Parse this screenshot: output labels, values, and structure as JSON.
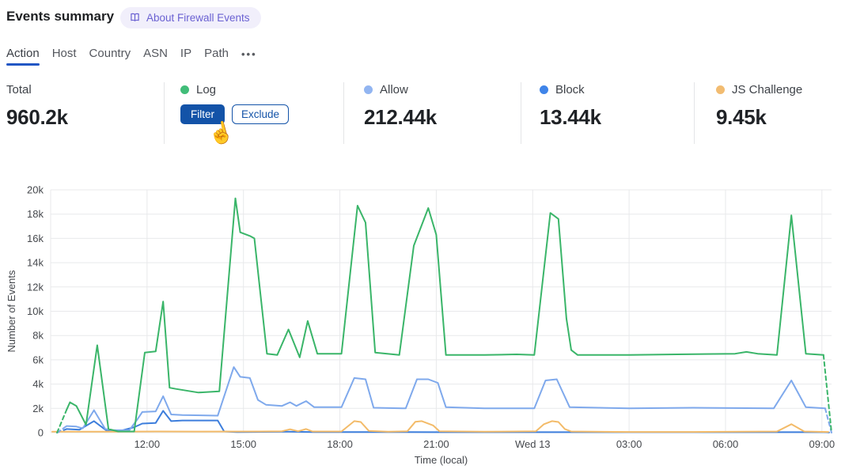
{
  "header": {
    "title": "Events summary",
    "about_label": "About Firewall Events"
  },
  "tabs": {
    "active": "Action",
    "items": [
      {
        "label": "Action"
      },
      {
        "label": "Host"
      },
      {
        "label": "Country"
      },
      {
        "label": "ASN"
      },
      {
        "label": "IP"
      },
      {
        "label": "Path"
      }
    ],
    "more_label": "•••"
  },
  "stats": {
    "cards": [
      {
        "label": "Total",
        "value": "960.2k"
      },
      {
        "label": "Log",
        "dot_color": "#41bd79",
        "filter_label": "Filter",
        "exclude_label": "Exclude"
      },
      {
        "label": "Allow",
        "dot_color": "#92b5f1",
        "value": "212.44k"
      },
      {
        "label": "Block",
        "dot_color": "#3f84e9",
        "value": "13.44k"
      },
      {
        "label": "JS Challenge",
        "dot_color": "#f2bc71",
        "value": "9.45k"
      }
    ]
  },
  "colors": {
    "accent_blue": "#2156c4",
    "filter_button_blue": "#1353a8",
    "pill_bg": "#f1effb",
    "pill_text": "#6a61d2",
    "tab_inactive": "#54575e",
    "grid_line": "#e8e9eb",
    "axis_text": "#45484d"
  },
  "chart_data": {
    "type": "line",
    "title": "",
    "xlabel": "Time (local)",
    "ylabel": "Number of Events",
    "x_encoding": "hours of day; 12 = 12:00 Tue, 24 = midnight (Wed 13), 33 = 09:00 Wed",
    "value_unit": "thousands of events",
    "x_range": [
      9.0,
      33.3
    ],
    "ylim": [
      0,
      20000
    ],
    "grid": true,
    "legend_position": "none (legend shown as stat cards above)",
    "y_ticks": [
      "0",
      "2k",
      "4k",
      "6k",
      "8k",
      "10k",
      "12k",
      "14k",
      "16k",
      "18k",
      "20k"
    ],
    "x_ticks": [
      {
        "t": 12,
        "label": "12:00"
      },
      {
        "t": 15,
        "label": "15:00"
      },
      {
        "t": 18,
        "label": "18:00"
      },
      {
        "t": 21,
        "label": "21:00"
      },
      {
        "t": 24,
        "label": "Wed 13"
      },
      {
        "t": 27,
        "label": "03:00"
      },
      {
        "t": 30,
        "label": "06:00"
      },
      {
        "t": 33,
        "label": "09:00"
      }
    ],
    "series": [
      {
        "name": "Block",
        "color": "#3d7edc",
        "lead_dash": [
          [
            9.2,
            0
          ],
          [
            9.5,
            0.3
          ]
        ],
        "points_k": [
          [
            9.5,
            0.3
          ],
          [
            9.9,
            0.25
          ],
          [
            10.35,
            0.95
          ],
          [
            10.75,
            0.15
          ],
          [
            11.1,
            0.1
          ],
          [
            11.6,
            0.45
          ],
          [
            11.85,
            0.75
          ],
          [
            12.27,
            0.8
          ],
          [
            12.5,
            1.8
          ],
          [
            12.75,
            0.95
          ],
          [
            13.1,
            1.0
          ],
          [
            14.2,
            1.0
          ],
          [
            14.4,
            0.1
          ],
          [
            14.8,
            0.05
          ],
          [
            16.4,
            0.08
          ],
          [
            17.2,
            0.05
          ],
          [
            19.0,
            0.05
          ],
          [
            21.0,
            0.04
          ],
          [
            23.0,
            0.04
          ],
          [
            25.0,
            0.04
          ],
          [
            27.0,
            0.04
          ],
          [
            29.0,
            0.04
          ],
          [
            31.0,
            0.04
          ],
          [
            33.1,
            0.04
          ]
        ],
        "tail_dash": [
          [
            33.1,
            0.04
          ],
          [
            33.3,
            0
          ]
        ]
      },
      {
        "name": "JS Challenge",
        "color": "#f3bb69",
        "points_k": [
          [
            9.05,
            0.08
          ],
          [
            11.0,
            0.08
          ],
          [
            12.3,
            0.1
          ],
          [
            13.5,
            0.09
          ],
          [
            15.5,
            0.1
          ],
          [
            16.2,
            0.12
          ],
          [
            16.45,
            0.28
          ],
          [
            16.7,
            0.12
          ],
          [
            16.95,
            0.3
          ],
          [
            17.15,
            0.1
          ],
          [
            18.05,
            0.1
          ],
          [
            18.45,
            0.95
          ],
          [
            18.65,
            0.88
          ],
          [
            18.9,
            0.15
          ],
          [
            19.5,
            0.08
          ],
          [
            20.1,
            0.12
          ],
          [
            20.35,
            0.9
          ],
          [
            20.55,
            0.95
          ],
          [
            20.9,
            0.6
          ],
          [
            21.1,
            0.12
          ],
          [
            22.5,
            0.08
          ],
          [
            24.1,
            0.12
          ],
          [
            24.35,
            0.7
          ],
          [
            24.6,
            0.95
          ],
          [
            24.8,
            0.88
          ],
          [
            25.0,
            0.3
          ],
          [
            25.2,
            0.1
          ],
          [
            27.0,
            0.06
          ],
          [
            29.0,
            0.06
          ],
          [
            31.6,
            0.1
          ],
          [
            32.05,
            0.7
          ],
          [
            32.45,
            0.1
          ],
          [
            33.2,
            0.06
          ]
        ]
      },
      {
        "name": "Allow",
        "color": "#7fa9ec",
        "lead_dash": [
          [
            9.2,
            0
          ],
          [
            9.5,
            0.55
          ]
        ],
        "points_k": [
          [
            9.5,
            0.55
          ],
          [
            9.8,
            0.5
          ],
          [
            10.0,
            0.35
          ],
          [
            10.35,
            1.85
          ],
          [
            10.7,
            0.3
          ],
          [
            10.95,
            0.2
          ],
          [
            11.45,
            0.2
          ],
          [
            11.7,
            1.1
          ],
          [
            11.85,
            1.7
          ],
          [
            12.27,
            1.75
          ],
          [
            12.5,
            3.0
          ],
          [
            12.75,
            1.5
          ],
          [
            13.1,
            1.45
          ],
          [
            14.2,
            1.4
          ],
          [
            14.7,
            5.4
          ],
          [
            14.9,
            4.6
          ],
          [
            15.2,
            4.5
          ],
          [
            15.45,
            2.7
          ],
          [
            15.7,
            2.3
          ],
          [
            16.2,
            2.2
          ],
          [
            16.45,
            2.5
          ],
          [
            16.65,
            2.2
          ],
          [
            16.95,
            2.6
          ],
          [
            17.2,
            2.1
          ],
          [
            18.05,
            2.1
          ],
          [
            18.45,
            4.5
          ],
          [
            18.8,
            4.4
          ],
          [
            19.05,
            2.05
          ],
          [
            20.05,
            2.0
          ],
          [
            20.4,
            4.4
          ],
          [
            20.75,
            4.4
          ],
          [
            21.05,
            4.1
          ],
          [
            21.3,
            2.1
          ],
          [
            22.5,
            2.0
          ],
          [
            24.05,
            2.0
          ],
          [
            24.4,
            4.3
          ],
          [
            24.75,
            4.4
          ],
          [
            25.15,
            2.1
          ],
          [
            27.0,
            2.0
          ],
          [
            29.0,
            2.05
          ],
          [
            31.5,
            2.0
          ],
          [
            32.05,
            4.3
          ],
          [
            32.5,
            2.1
          ],
          [
            33.1,
            2.0
          ]
        ],
        "tail_dash": [
          [
            33.1,
            2.0
          ],
          [
            33.3,
            0
          ]
        ]
      },
      {
        "name": "Log",
        "color": "#3ab569",
        "lead_dash": [
          [
            9.2,
            0
          ],
          [
            9.5,
            1.9
          ]
        ],
        "points_k": [
          [
            9.5,
            1.9
          ],
          [
            9.6,
            2.5
          ],
          [
            9.8,
            2.2
          ],
          [
            10.1,
            0.65
          ],
          [
            10.45,
            7.2
          ],
          [
            10.8,
            0.3
          ],
          [
            11.1,
            0.1
          ],
          [
            11.6,
            0.1
          ],
          [
            11.93,
            6.6
          ],
          [
            12.27,
            6.7
          ],
          [
            12.5,
            10.8
          ],
          [
            12.7,
            3.7
          ],
          [
            12.9,
            3.6
          ],
          [
            13.6,
            3.3
          ],
          [
            14.25,
            3.4
          ],
          [
            14.75,
            19.3
          ],
          [
            14.9,
            16.5
          ],
          [
            15.2,
            16.2
          ],
          [
            15.34,
            16.0
          ],
          [
            15.73,
            6.5
          ],
          [
            16.05,
            6.4
          ],
          [
            16.4,
            8.5
          ],
          [
            16.75,
            6.2
          ],
          [
            17.0,
            9.2
          ],
          [
            17.3,
            6.5
          ],
          [
            18.05,
            6.5
          ],
          [
            18.55,
            18.7
          ],
          [
            18.8,
            17.3
          ],
          [
            19.1,
            6.6
          ],
          [
            19.85,
            6.4
          ],
          [
            20.3,
            15.4
          ],
          [
            20.75,
            18.5
          ],
          [
            21.0,
            16.3
          ],
          [
            21.3,
            6.4
          ],
          [
            22.5,
            6.4
          ],
          [
            23.5,
            6.45
          ],
          [
            24.05,
            6.4
          ],
          [
            24.55,
            18.1
          ],
          [
            24.8,
            17.6
          ],
          [
            25.05,
            9.4
          ],
          [
            25.2,
            6.8
          ],
          [
            25.4,
            6.4
          ],
          [
            27.0,
            6.4
          ],
          [
            28.5,
            6.45
          ],
          [
            30.3,
            6.5
          ],
          [
            30.65,
            6.65
          ],
          [
            31.0,
            6.5
          ],
          [
            31.6,
            6.4
          ],
          [
            32.05,
            17.9
          ],
          [
            32.5,
            6.5
          ],
          [
            33.05,
            6.4
          ]
        ],
        "tail_dash": [
          [
            33.05,
            6.4
          ],
          [
            33.3,
            0
          ]
        ]
      }
    ]
  }
}
